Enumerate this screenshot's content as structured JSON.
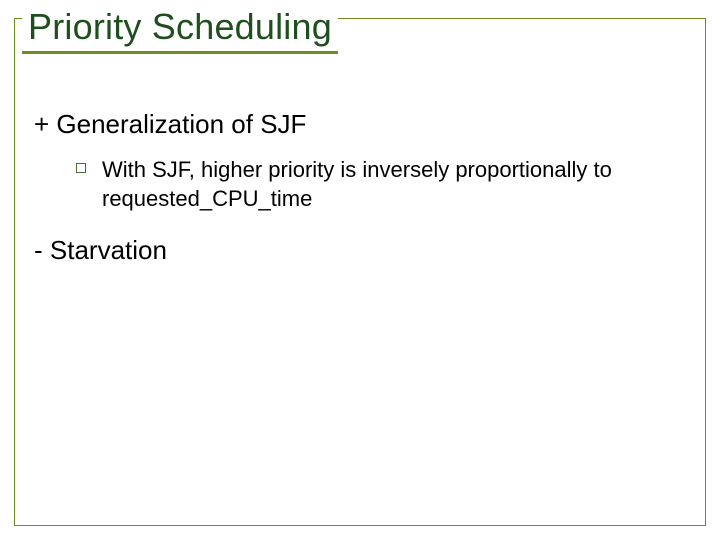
{
  "colors": {
    "frame_border": "#6b8e23",
    "title_text": "#1f4e1f",
    "title_underline": "#6b8e23",
    "body_text": "#000000",
    "bullet_border": "#4a6b2a",
    "background": "#ffffff"
  },
  "title": "Priority Scheduling",
  "points": [
    {
      "text": "+ Generalization of SJF",
      "subs": [
        "With SJF, higher priority is inversely proportionally to requested_CPU_time"
      ]
    },
    {
      "text": "- Starvation",
      "subs": []
    }
  ],
  "typography": {
    "title_fontsize": 36,
    "point_fontsize": 26,
    "sub_fontsize": 22
  }
}
